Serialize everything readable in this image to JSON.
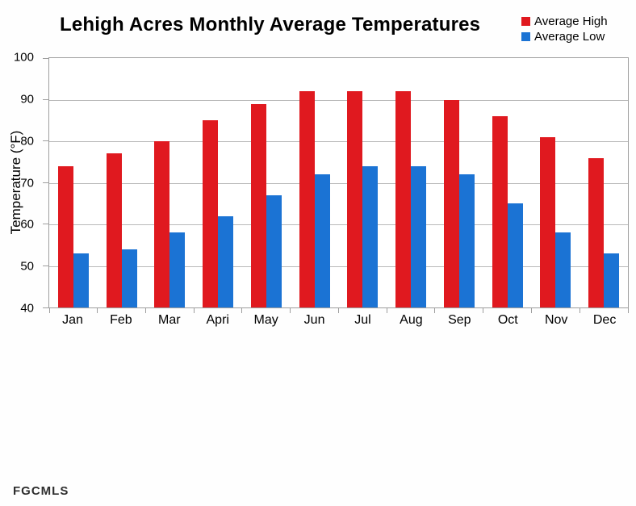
{
  "watermark": "FGCMLS",
  "chart_data": {
    "type": "bar",
    "title": "Lehigh Acres Monthly Average Temperatures",
    "ylabel": "Temperature (°F)",
    "xlabel": "",
    "categories": [
      "Jan",
      "Feb",
      "Mar",
      "Apri",
      "May",
      "Jun",
      "Jul",
      "Aug",
      "Sep",
      "Oct",
      "Nov",
      "Dec"
    ],
    "series": [
      {
        "name": "Average High",
        "color": "#e0191f",
        "values": [
          74,
          77,
          80,
          85,
          89,
          92,
          92,
          92,
          90,
          86,
          81,
          76
        ]
      },
      {
        "name": "Average Low",
        "color": "#1b73d4",
        "values": [
          53,
          54,
          58,
          62,
          67,
          72,
          74,
          74,
          72,
          65,
          58,
          53
        ]
      }
    ],
    "ylim": [
      40,
      100
    ],
    "ytick_step": 10,
    "grid": true,
    "legend_position": "top-right",
    "grid_color": "#b9b9b9",
    "axis_color": "#9e9e9e"
  }
}
